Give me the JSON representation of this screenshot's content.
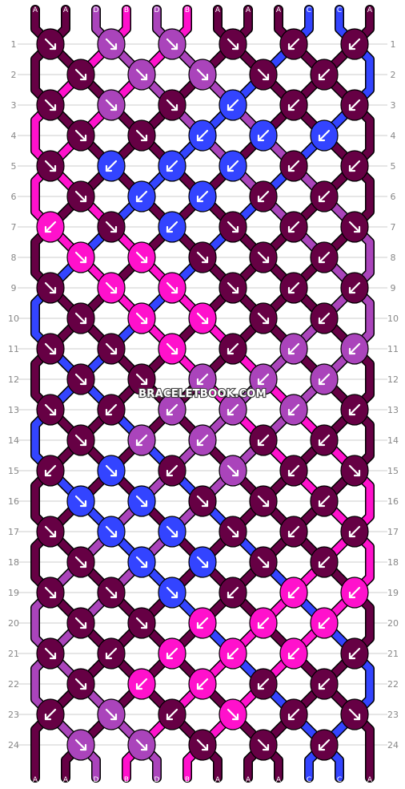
{
  "watermark": "BRACELETBOOK.COM",
  "rows": [
    "1",
    "2",
    "3",
    "4",
    "5",
    "6",
    "7",
    "8",
    "9",
    "10",
    "11",
    "12",
    "13",
    "14",
    "15",
    "16",
    "17",
    "18",
    "19",
    "20",
    "21",
    "22",
    "23",
    "24"
  ],
  "strings_top": [
    "A",
    "A",
    "D",
    "B",
    "D",
    "B",
    "A",
    "A",
    "A",
    "C",
    "C",
    "A"
  ],
  "strings_bottom": [
    "A",
    "A",
    "D",
    "B",
    "D",
    "B",
    "A",
    "A",
    "A",
    "C",
    "C",
    "A"
  ],
  "colors": {
    "A": "#660044",
    "B": "#ff11cc",
    "C": "#3344ff",
    "D": "#aa44bb",
    "outline": "#000000",
    "gridline": "#cccccc",
    "rowlabel": "#888888"
  },
  "knots": [
    [
      "A",
      "D",
      "D",
      "A",
      "A",
      "A"
    ],
    [
      "A",
      "D",
      "D",
      "A",
      "A"
    ],
    [
      "A",
      "D",
      "A",
      "C",
      "A",
      "A"
    ],
    [
      "A",
      "A",
      "C",
      "C",
      "C"
    ],
    [
      "A",
      "C",
      "C",
      "C",
      "A",
      "A"
    ],
    [
      "A",
      "C",
      "C",
      "A",
      "A"
    ],
    [
      "B",
      "A",
      "C",
      "A",
      "A",
      "A"
    ],
    [
      "B",
      "B",
      "A",
      "A",
      "A"
    ],
    [
      "A",
      "B",
      "B",
      "A",
      "A",
      "A"
    ],
    [
      "A",
      "B",
      "B",
      "A",
      "A"
    ],
    [
      "A",
      "A",
      "B",
      "A",
      "D",
      "D"
    ],
    [
      "A",
      "A",
      "D",
      "D",
      "D"
    ],
    [
      "A",
      "A",
      "D",
      "D",
      "D",
      "A"
    ],
    [
      "A",
      "D",
      "D",
      "A",
      "A"
    ],
    [
      "A",
      "C",
      "A",
      "D",
      "A",
      "A"
    ],
    [
      "C",
      "C",
      "A",
      "A",
      "A"
    ],
    [
      "A",
      "C",
      "C",
      "A",
      "A",
      "A"
    ],
    [
      "A",
      "C",
      "C",
      "A",
      "A"
    ],
    [
      "A",
      "A",
      "C",
      "A",
      "B",
      "B"
    ],
    [
      "A",
      "A",
      "B",
      "B",
      "B"
    ],
    [
      "A",
      "A",
      "B",
      "B",
      "B",
      "A"
    ],
    [
      "A",
      "B",
      "B",
      "A",
      "A"
    ],
    [
      "A",
      "D",
      "A",
      "B",
      "A",
      "A"
    ],
    [
      "D",
      "D",
      "A",
      "A",
      "A"
    ]
  ],
  "arrows": [
    [
      "f",
      "f",
      "f",
      "f",
      "b",
      "b"
    ],
    [
      "f",
      "f",
      "f",
      "f",
      "b"
    ],
    [
      "f",
      "f",
      "f",
      "b",
      "b",
      "b"
    ],
    [
      "f",
      "f",
      "b",
      "b",
      "b"
    ],
    [
      "f",
      "b",
      "b",
      "b",
      "b",
      "b"
    ],
    [
      "f",
      "b",
      "b",
      "b",
      "b"
    ],
    [
      "b",
      "f",
      "b",
      "f",
      "b",
      "f"
    ],
    [
      "f",
      "f",
      "f",
      "f",
      "b"
    ],
    [
      "f",
      "f",
      "f",
      "f",
      "b",
      "b"
    ],
    [
      "f",
      "f",
      "f",
      "f",
      "b"
    ],
    [
      "f",
      "f",
      "f",
      "b",
      "b",
      "b"
    ],
    [
      "f",
      "f",
      "b",
      "b",
      "b"
    ],
    [
      "f",
      "b",
      "b",
      "b",
      "b",
      "b"
    ],
    [
      "f",
      "b",
      "b",
      "b",
      "b"
    ],
    [
      "b",
      "f",
      "b",
      "f",
      "b",
      "f"
    ],
    [
      "f",
      "f",
      "f",
      "f",
      "b"
    ],
    [
      "f",
      "f",
      "f",
      "f",
      "b",
      "b"
    ],
    [
      "f",
      "f",
      "f",
      "f",
      "b"
    ],
    [
      "f",
      "f",
      "f",
      "b",
      "b",
      "b"
    ],
    [
      "f",
      "f",
      "b",
      "b",
      "b"
    ],
    [
      "f",
      "b",
      "b",
      "b",
      "b",
      "b"
    ],
    [
      "f",
      "b",
      "b",
      "b",
      "b"
    ],
    [
      "b",
      "f",
      "b",
      "f",
      "b",
      "f"
    ],
    [
      "f",
      "f",
      "f",
      "f",
      "b"
    ]
  ]
}
